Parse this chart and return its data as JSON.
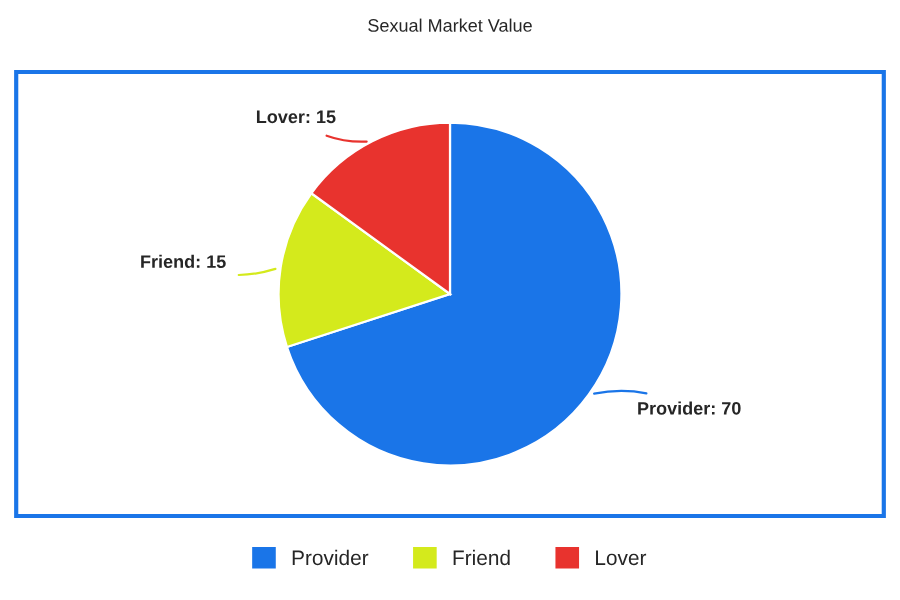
{
  "chart_data": {
    "type": "pie",
    "title": "Sexual Market Value",
    "categories": [
      "Provider",
      "Friend",
      "Lover"
    ],
    "values": [
      70,
      15,
      15
    ],
    "colors": [
      "#1a75e8",
      "#d4ea1c",
      "#e8332e"
    ],
    "value_labels": [
      "Provider: 70",
      "Friend: 15",
      "Lover: 15"
    ],
    "legend": "bottom"
  }
}
